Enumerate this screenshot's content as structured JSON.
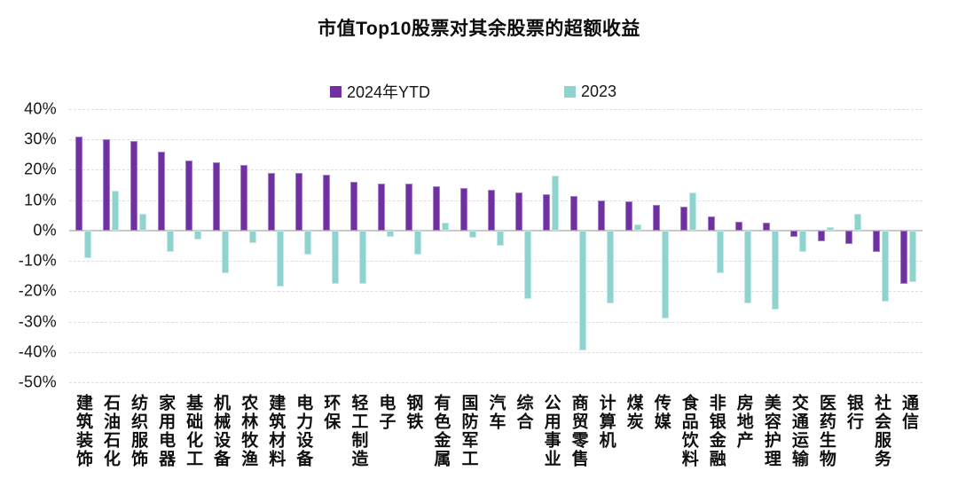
{
  "title": "市值Top10股票对其余股票的超额收益",
  "legend": [
    {
      "label": "2024年YTD",
      "color": "#7030a0"
    },
    {
      "label": "2023",
      "color": "#8fd3cf"
    }
  ],
  "colors": {
    "series_2024ytd": "#7030a0",
    "series_2023": "#8fd3cf",
    "gridline": "#dedede",
    "zero_line": "#c9c9c9",
    "text": "#111111"
  },
  "chart_data": {
    "type": "bar",
    "title": "市值Top10股票对其余股票的超额收益",
    "xlabel": "",
    "ylabel": "",
    "unit": "%",
    "ylim": [
      -50,
      40
    ],
    "grid": "horizontal-dashed",
    "legend_position": "top",
    "categories": [
      "建筑装饰",
      "石油石化",
      "纺织服饰",
      "家用电器",
      "基础化工",
      "机械设备",
      "农林牧渔",
      "建筑材料",
      "电力设备",
      "环保",
      "轻工制造",
      "电子",
      "钢铁",
      "有色金属",
      "国防军工",
      "汽车",
      "综合",
      "公用事业",
      "商贸零售",
      "计算机",
      "煤炭",
      "传媒",
      "食品饮料",
      "非银金融",
      "房地产",
      "美容护理",
      "交通运输",
      "医药生物",
      "银行",
      "社会服务",
      "通信"
    ],
    "series": [
      {
        "name": "2024年YTD",
        "color": "#7030a0",
        "values": [
          31,
          30,
          29.5,
          26,
          23,
          22.5,
          21.5,
          19,
          19,
          18.5,
          16,
          15.5,
          15.5,
          14.5,
          14,
          13.5,
          12.5,
          12,
          11.5,
          10,
          9.5,
          8.5,
          8,
          4.5,
          3,
          2.5,
          -2,
          -3.5,
          -4.5,
          -7,
          -17.5
        ]
      },
      {
        "name": "2023",
        "color": "#8fd3cf",
        "values": [
          -9,
          13,
          5.5,
          -7,
          -3,
          -14,
          -4,
          -18.5,
          -8,
          -17.5,
          -17.5,
          -2,
          -8,
          2.5,
          -2.5,
          -5,
          -22.5,
          18,
          -39.5,
          -24,
          2,
          -29,
          12.5,
          -14,
          -24,
          -26,
          -7,
          1,
          5.5,
          -23.5,
          -17
        ]
      }
    ],
    "ytick_values": [
      40,
      30,
      20,
      10,
      0,
      -10,
      -20,
      -30,
      -40,
      -50
    ],
    "ytick_labels": [
      "40%",
      "30%",
      "20%",
      "10%",
      "0%",
      "-10%",
      "-20%",
      "-30%",
      "-40%",
      "-50%"
    ]
  }
}
